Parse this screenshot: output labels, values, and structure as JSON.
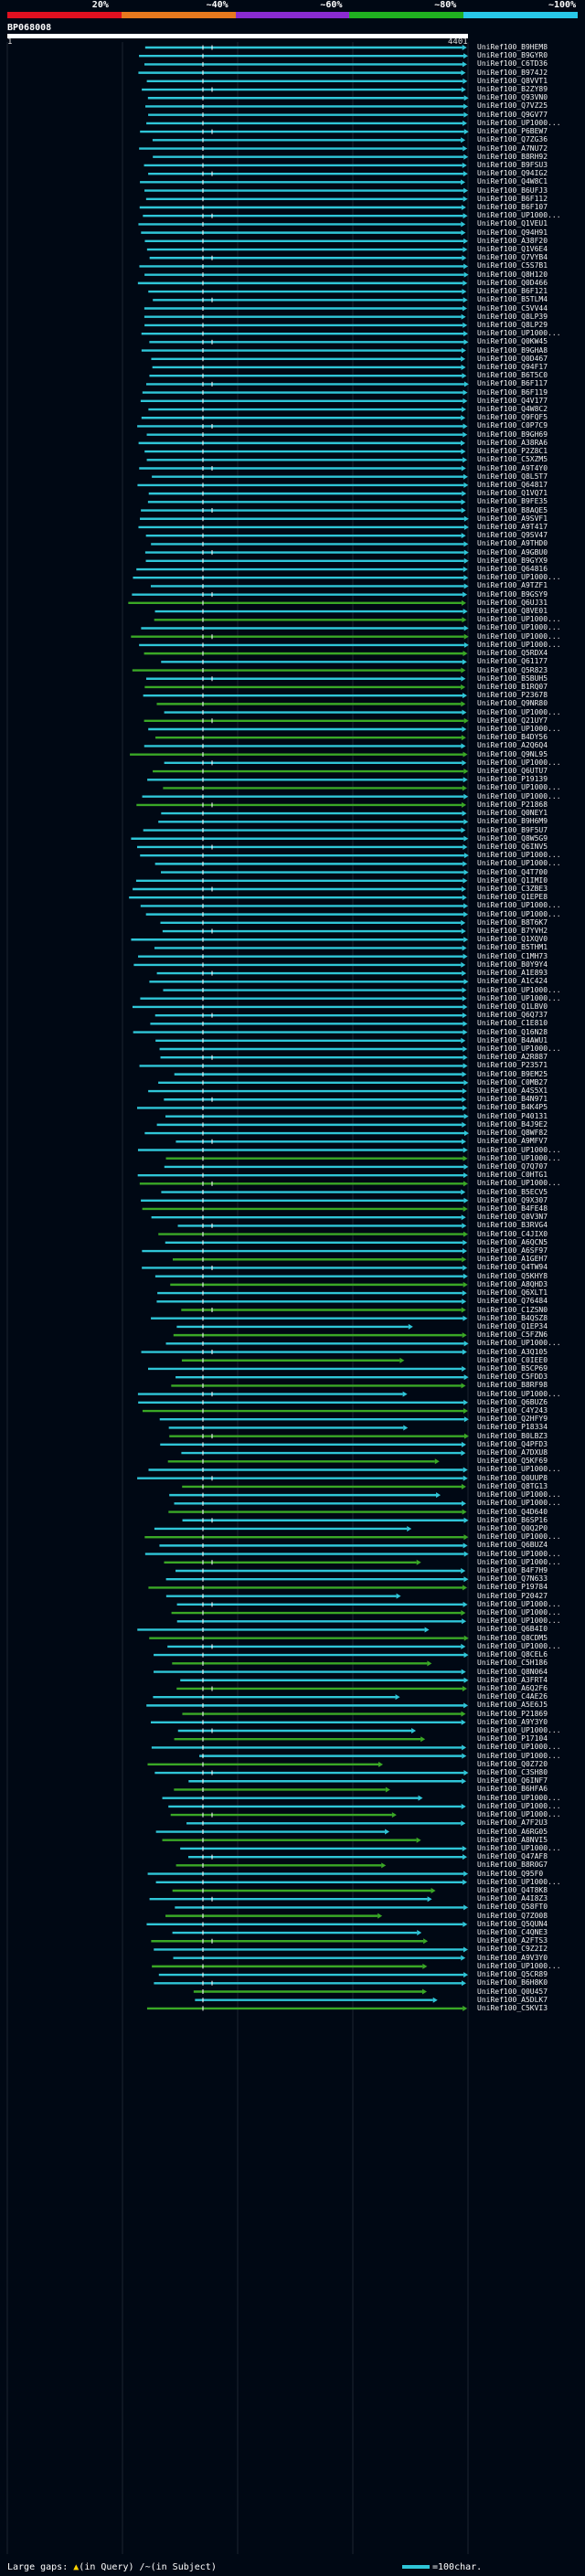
{
  "scale_bar": {
    "labels": [
      "20%",
      "~40%",
      "~60%",
      "~80%",
      "~100%"
    ],
    "colors": [
      "#e01020",
      "#e8781e",
      "#8a2bd0",
      "#20b020",
      "#28c8e8"
    ]
  },
  "query": {
    "name": "BP068008",
    "start": "1",
    "end": "4401"
  },
  "colors": {
    "cyan": "#2fc6d8",
    "green": "#3aa826",
    "purple": "#9a36a6",
    "guide": "#1c2430",
    "query_bar": "#ffffff"
  },
  "hits": [
    "UniRef100_B9HEM8",
    "UniRef100_B9GYR0",
    "UniRef100_C6TD36",
    "UniRef100_B974J2",
    "UniRef100_Q8VVT1",
    "UniRef100_B2ZY89",
    "UniRef100_Q93VN0",
    "UniRef100_Q7VZ25",
    "UniRef100_Q9GV77",
    "UniRef100_UP1000...",
    "UniRef100_P6BEW7",
    "UniRef100_Q7ZG36",
    "UniRef100_A7NU72",
    "UniRef100_B8RH92",
    "UniRef100_B9FSU3",
    "UniRef100_Q94IG2",
    "UniRef100_Q4W8C1",
    "UniRef100_B6UFJ3",
    "UniRef100_B6F112",
    "UniRef100_B6F107",
    "UniRef100_UP1000...",
    "UniRef100_Q1VEU1",
    "UniRef100_Q94H91",
    "UniRef100_A38F20",
    "UniRef100_Q1V6E4",
    "UniRef100_Q7VYB4",
    "UniRef100_C5S7B1",
    "UniRef100_Q8H120",
    "UniRef100_Q0D466",
    "UniRef100_B6F121",
    "UniRef100_B5TLM4",
    "UniRef100_C5VV44",
    "UniRef100_Q8LP39",
    "UniRef100_Q8LP29",
    "UniRef100_UP1000...",
    "UniRef100_Q0KW45",
    "UniRef100_B9GHA8",
    "UniRef100_Q0D467",
    "UniRef100_Q94F17",
    "UniRef100_B6T5C0",
    "UniRef100_B6F117",
    "UniRef100_B6F119",
    "UniRef100_Q4V177",
    "UniRef100_Q4W8C2",
    "UniRef100_Q9FQF5",
    "UniRef100_C0P7C9",
    "UniRef100_B9GH69",
    "UniRef100_A38RA6",
    "UniRef100_P2Z8C1",
    "UniRef100_C5XZM5",
    "UniRef100_A9T4Y0",
    "UniRef100_Q8L5T7",
    "UniRef100_Q64817",
    "UniRef100_Q1VQ71",
    "UniRef100_B9FE35",
    "UniRef100_B8AQE5",
    "UniRef100_A9SVF1",
    "UniRef100_A9T417",
    "UniRef100_Q9SV47",
    "UniRef100_A9THD0",
    "UniRef100_A9GBU0",
    "UniRef100_B9GYX9",
    "UniRef100_Q64816",
    "UniRef100_UP1000...",
    "UniRef100_A9TZF1",
    "UniRef100_B9GSY9",
    "UniRef100_Q6UJ31",
    "UniRef100_Q8VE01",
    "UniRef100_UP1000...",
    "UniRef100_UP1000...",
    "UniRef100_UP1000...",
    "UniRef100_UP1000...",
    "UniRef100_Q5RDX4",
    "UniRef100_Q61177",
    "UniRef100_Q5R823",
    "UniRef100_B5BUH5",
    "UniRef100_B1RQ07",
    "UniRef100_P23678",
    "UniRef100_Q9NR80",
    "UniRef100_UP1000...",
    "UniRef100_Q21UY7",
    "UniRef100_UP1000...",
    "UniRef100_B4DY56",
    "UniRef100_A2Q6Q4",
    "UniRef100_Q9NL95",
    "UniRef100_UP1000...",
    "UniRef100_Q6UTU7",
    "UniRef100_P19139",
    "UniRef100_UP1000...",
    "UniRef100_UP1000...",
    "UniRef100_P21868",
    "UniRef100_Q0NEY1",
    "UniRef100_B9H6M9",
    "UniRef100_B9F5U7",
    "UniRef100_Q8W5G9",
    "UniRef100_Q6INV5",
    "UniRef100_UP1000...",
    "UniRef100_UP1000...",
    "UniRef100_Q4T700",
    "UniRef100_Q1IMI0",
    "UniRef100_C3ZBE3",
    "UniRef100_Q1EPE8",
    "UniRef100_UP1000...",
    "UniRef100_UP1000...",
    "UniRef100_B8T6K7",
    "UniRef100_B7YVH2",
    "UniRef100_Q1XQV0",
    "UniRef100_B5THM1",
    "UniRef100_C1MH73",
    "UniRef100_B0Y9Y4",
    "UniRef100_A1E893",
    "UniRef100_A1C424",
    "UniRef100_UP1000...",
    "UniRef100_UP1000...",
    "UniRef100_Q1LBV0",
    "UniRef100_Q6Q737",
    "UniRef100_C1E810",
    "UniRef100_Q16N28",
    "UniRef100_B4AWU1",
    "UniRef100_UP1000...",
    "UniRef100_A2R887",
    "UniRef100_P23571",
    "UniRef100_B9EM25",
    "UniRef100_C0MB27",
    "UniRef100_A4S5X1",
    "UniRef100_B4N971",
    "UniRef100_B4K4P5",
    "UniRef100_P40131",
    "UniRef100_B4J9E2",
    "UniRef100_Q8WF82",
    "UniRef100_A9MFV7",
    "UniRef100_UP1000...",
    "UniRef100_UP1000...",
    "UniRef100_Q7Q707",
    "UniRef100_C0HTG1",
    "UniRef100_UP1000...",
    "UniRef100_B5ECV5",
    "UniRef100_Q9X307",
    "UniRef100_B4FE48",
    "UniRef100_Q8V3N7",
    "UniRef100_B3RVG4",
    "UniRef100_C4JIX0",
    "UniRef100_A6QCN5",
    "UniRef100_A6SF97",
    "UniRef100_A1GEH7",
    "UniRef100_Q4TW94",
    "UniRef100_Q5KHY8",
    "UniRef100_A8QHD3",
    "UniRef100_Q6XLT1",
    "UniRef100_Q76484",
    "UniRef100_C1ZSN0",
    "UniRef100_B4QSZ8",
    "UniRef100_Q1EP34",
    "UniRef100_C5FZN6",
    "UniRef100_UP1000...",
    "UniRef100_A3Q105",
    "UniRef100_C0IEE0",
    "UniRef100_B5CP69",
    "UniRef100_C5FDD3",
    "UniRef100_B8RF98",
    "UniRef100_UP1000...",
    "UniRef100_Q6BUZ6",
    "UniRef100_C4Y243",
    "UniRef100_Q2HFY9",
    "UniRef100_P18334",
    "UniRef100_B0LBZ3",
    "UniRef100_Q4PFD3",
    "UniRef100_A7DXU8",
    "UniRef100_Q5KF69",
    "UniRef100_UP1000...",
    "UniRef100_Q0UUP8",
    "UniRef100_Q8TG13",
    "UniRef100_UP1000...",
    "UniRef100_UP1000...",
    "UniRef100_Q4D640",
    "UniRef100_B6SP16",
    "UniRef100_Q0Q2P0",
    "UniRef100_UP1000...",
    "UniRef100_Q6BUZ4",
    "UniRef100_UP1000...",
    "UniRef100_UP1000...",
    "UniRef100_B4F7H9",
    "UniRef100_Q7N633",
    "UniRef100_P19784",
    "UniRef100_P20427",
    "UniRef100_UP1000...",
    "UniRef100_UP1000...",
    "UniRef100_UP1000...",
    "UniRef100_Q6B4I0",
    "UniRef100_Q8CDM5",
    "UniRef100_UP1000...",
    "UniRef100_Q8CEL6",
    "UniRef100_C5H186",
    "UniRef100_Q8N064",
    "UniRef100_A3FRT4",
    "UniRef100_A6Q2F6",
    "UniRef100_C4AE26",
    "UniRef100_A5E6J5",
    "UniRef100_P21869",
    "UniRef100_A9Y3Y0",
    "UniRef100_UP1000...",
    "UniRef100_P17104",
    "UniRef100_UP1000...",
    "UniRef100_UP1000...",
    "UniRef100_Q0Z720",
    "UniRef100_C3SH80",
    "UniRef100_Q6INF7",
    "UniRef100_B6HFA6",
    "UniRef100_UP1000...",
    "UniRef100_UP1000...",
    "UniRef100_UP1000...",
    "UniRef100_A7F2U3",
    "UniRef100_A6RG05",
    "UniRef100_A8NVI5",
    "UniRef100_UP1000...",
    "UniRef100_Q47AF8",
    "UniRef100_B8R0G7",
    "UniRef100_Q95F0",
    "UniRef100_UP1000...",
    "UniRef100_Q4T8K8",
    "UniRef100_A4I8Z3",
    "UniRef100_Q58FT0",
    "UniRef100_Q7Z008",
    "UniRef100_Q5QUN4",
    "UniRef100_C4QNE3",
    "UniRef100_A2FTS3",
    "UniRef100_C9Z2I2",
    "UniRef100_A9V3Y0",
    "UniRef100_UP1000...",
    "UniRef100_Q5CR89",
    "UniRef100_B6H8K0",
    "UniRef100_Q0U457",
    "UniRef100_A5DLK7",
    "UniRef100_C5KVI3"
  ],
  "footer": {
    "large_gaps_label": "Large gaps:",
    "query_gap_mark": "▲",
    "query_gap_text": "(in Query)",
    "subject_gap_mark": "/~",
    "subject_gap_text": "(in Subject)",
    "legend_text": "=100char."
  }
}
